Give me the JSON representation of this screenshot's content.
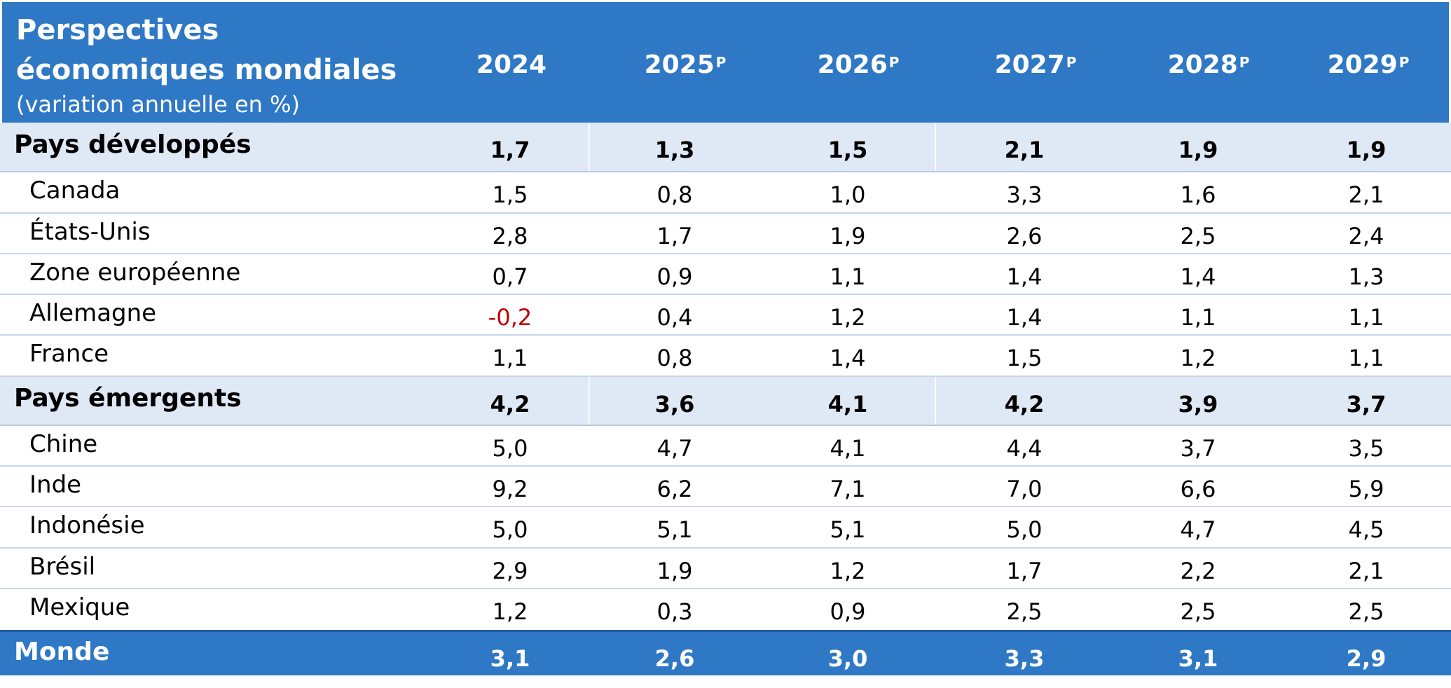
{
  "header": {
    "title": "Perspectives économiques mondiales",
    "subtitle": "(variation annuelle en %)",
    "years": [
      {
        "label": "2024",
        "suffix": ""
      },
      {
        "label": "2025",
        "suffix": "P"
      },
      {
        "label": "2026",
        "suffix": "P"
      },
      {
        "label": "2027",
        "suffix": "P"
      },
      {
        "label": "2028",
        "suffix": "P"
      },
      {
        "label": "2029",
        "suffix": "P"
      }
    ]
  },
  "groups": {
    "developed": {
      "label": "Pays développés",
      "values": [
        "1,7",
        "1,3",
        "1,5",
        "2,1",
        "1,9",
        "1,9"
      ]
    },
    "emerging": {
      "label": "Pays émergents",
      "values": [
        "4,2",
        "3,6",
        "4,1",
        "4,2",
        "3,9",
        "3,7"
      ]
    }
  },
  "countries": {
    "canada": {
      "label": "Canada",
      "values": [
        "1,5",
        "0,8",
        "1,0",
        "3,3",
        "1,6",
        "2,1"
      ]
    },
    "usa": {
      "label": "États-Unis",
      "values": [
        "2,8",
        "1,7",
        "1,9",
        "2,6",
        "2,5",
        "2,4"
      ]
    },
    "eurozone": {
      "label": "Zone européenne",
      "values": [
        "0,7",
        "0,9",
        "1,1",
        "1,4",
        "1,4",
        "1,3"
      ]
    },
    "germany": {
      "label": "Allemagne",
      "values": [
        "-0,2",
        "0,4",
        "1,2",
        "1,4",
        "1,1",
        "1,1"
      ]
    },
    "france": {
      "label": "France",
      "values": [
        "1,1",
        "0,8",
        "1,4",
        "1,5",
        "1,2",
        "1,1"
      ]
    },
    "china": {
      "label": "Chine",
      "values": [
        "5,0",
        "4,7",
        "4,1",
        "4,4",
        "3,7",
        "3,5"
      ]
    },
    "india": {
      "label": "Inde",
      "values": [
        "9,2",
        "6,2",
        "7,1",
        "7,0",
        "6,6",
        "5,9"
      ]
    },
    "indonesia": {
      "label": "Indonésie",
      "values": [
        "5,0",
        "5,1",
        "5,1",
        "5,0",
        "4,7",
        "4,5"
      ]
    },
    "brazil": {
      "label": "Brésil",
      "values": [
        "2,9",
        "1,9",
        "1,2",
        "1,7",
        "2,2",
        "2,1"
      ]
    },
    "mexico": {
      "label": "Mexique",
      "values": [
        "1,2",
        "0,3",
        "0,9",
        "2,5",
        "2,5",
        "2,5"
      ]
    }
  },
  "world": {
    "label": "Monde",
    "values": [
      "3,1",
      "2,6",
      "3,0",
      "3,3",
      "3,1",
      "2,9"
    ]
  },
  "colors": {
    "header_bg": "#2f78c5",
    "group_bg": "#dfe8f5",
    "negative": "#c00000"
  }
}
